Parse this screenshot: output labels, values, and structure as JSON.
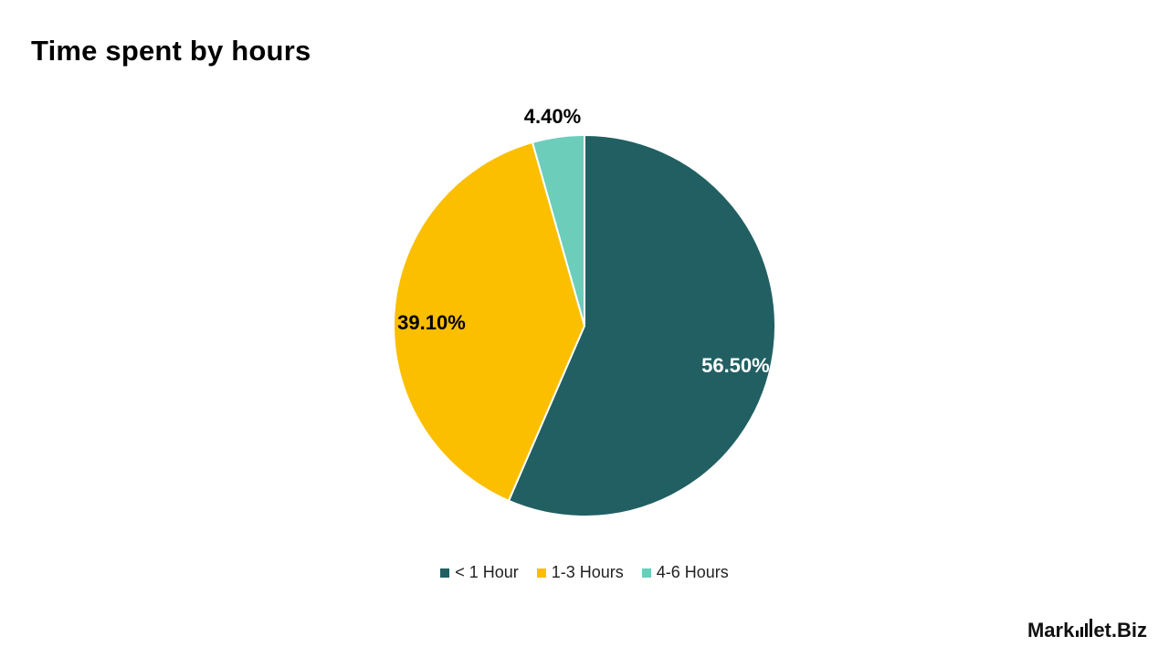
{
  "chart_data": {
    "type": "pie",
    "title": "Time spent by hours",
    "categories": [
      "< 1 Hour",
      "1-3 Hours",
      "4-6 Hours"
    ],
    "values": [
      56.5,
      39.1,
      4.4
    ],
    "labels": [
      "56.50%",
      "39.10%",
      "4.40%"
    ],
    "colors": [
      "#215f62",
      "#fbbf00",
      "#6ccdbb"
    ],
    "label_colors": [
      "#ffffff",
      "#000000",
      "#000000"
    ],
    "legend_position": "bottom"
  },
  "branding": {
    "logo_text_left": "Mark",
    "logo_text_right": "et.Biz"
  }
}
